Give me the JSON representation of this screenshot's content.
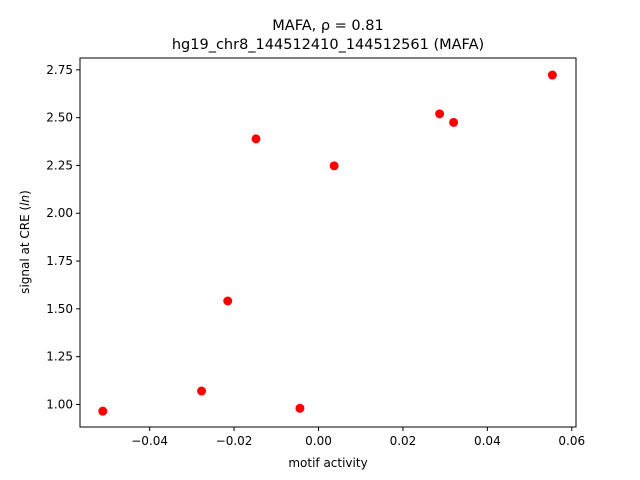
{
  "chart_data": {
    "type": "scatter",
    "title": "MAFA, ρ = 0.81",
    "subtitle": "hg19_chr8_144512410_144512561 (MAFA)",
    "xlabel": "motif activity",
    "ylabel": "signal at CRE (ln)",
    "xlim": [
      -0.0565,
      0.061
    ],
    "ylim": [
      0.882,
      2.812
    ],
    "x_ticks": [
      -0.04,
      -0.02,
      0.0,
      0.02,
      0.04,
      0.06
    ],
    "x_tick_labels": [
      "−0.04",
      "−0.02",
      "0.00",
      "0.02",
      "0.04",
      "0.06"
    ],
    "y_ticks": [
      1.0,
      1.25,
      1.5,
      1.75,
      2.0,
      2.25,
      2.5,
      2.75
    ],
    "y_tick_labels": [
      "1.00",
      "1.25",
      "1.50",
      "1.75",
      "2.00",
      "2.25",
      "2.50",
      "2.75"
    ],
    "grid": false,
    "marker_color": "#ff0000",
    "points": [
      {
        "x": -0.0511,
        "y": 0.965
      },
      {
        "x": -0.0277,
        "y": 1.07
      },
      {
        "x": -0.0215,
        "y": 1.541
      },
      {
        "x": -0.0148,
        "y": 2.389
      },
      {
        "x": -0.0044,
        "y": 0.98
      },
      {
        "x": 0.0037,
        "y": 2.248
      },
      {
        "x": 0.0287,
        "y": 2.52
      },
      {
        "x": 0.032,
        "y": 2.475
      },
      {
        "x": 0.0554,
        "y": 2.723
      }
    ]
  }
}
